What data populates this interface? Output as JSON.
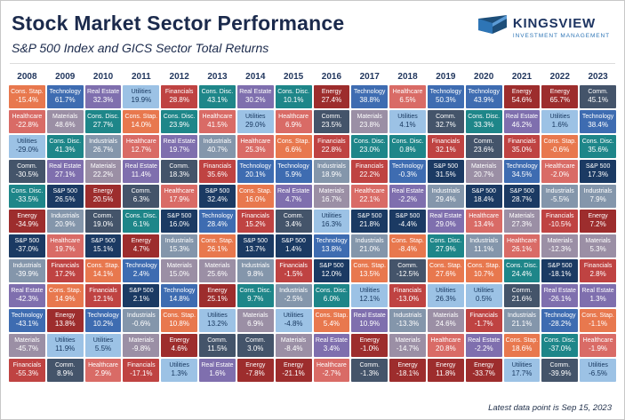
{
  "header": {
    "title": "Stock Market Sector Performance",
    "subtitle": "S&P 500 Index and GICS Sector Total Returns",
    "brand": {
      "name": "KINGSVIEW",
      "tagline": "INVESTMENT MANAGEMENT"
    }
  },
  "footnote": "Latest data point is Sep 15, 2023",
  "colors": {
    "S&P 500": {
      "bg": "#1b3a63",
      "fg": "#ffffff"
    },
    "Technology": {
      "bg": "#3e6cb1",
      "fg": "#ffffff"
    },
    "Comm.": {
      "bg": "#44546a",
      "fg": "#ffffff"
    },
    "Industrials": {
      "bg": "#8496ab",
      "fg": "#ffffff"
    },
    "Utilities": {
      "bg": "#9cc2e5",
      "fg": "#17375e"
    },
    "Cons. Disc.": {
      "bg": "#1e8689",
      "fg": "#ffffff"
    },
    "Cons. Stap.": {
      "bg": "#e8784e",
      "fg": "#ffffff"
    },
    "Healthcare": {
      "bg": "#d96b66",
      "fg": "#ffffff"
    },
    "Financials": {
      "bg": "#bf4342",
      "fg": "#ffffff"
    },
    "Energy": {
      "bg": "#9d2d2d",
      "fg": "#ffffff"
    },
    "Materials": {
      "bg": "#9b8fa5",
      "fg": "#ffffff"
    },
    "Real Estate": {
      "bg": "#7f6fae",
      "fg": "#ffffff"
    }
  },
  "chart_data": {
    "type": "table",
    "subtype": "sector-performance-quilt",
    "title": "Stock Market Sector Performance",
    "subtitle": "S&P 500 Index and GICS Sector Total Returns",
    "note": "Latest data point is Sep 15, 2023",
    "value_unit": "percent annual total return",
    "layout_hint": "16 year columns, each sorted descending; cell color keyed to sector",
    "years": [
      "2008",
      "2009",
      "2010",
      "2011",
      "2012",
      "2013",
      "2014",
      "2015",
      "2016",
      "2017",
      "2018",
      "2019",
      "2020",
      "2021",
      "2022",
      "2023"
    ],
    "columns": {
      "2008": [
        [
          "Cons. Stap.",
          -15.4
        ],
        [
          "Healthcare",
          -22.8
        ],
        [
          "Utilities",
          -29.0
        ],
        [
          "Comm.",
          -30.5
        ],
        [
          "Cons. Disc.",
          -33.5
        ],
        [
          "Energy",
          -34.9
        ],
        [
          "S&P 500",
          -37.0
        ],
        [
          "Industrials",
          -39.9
        ],
        [
          "Real Estate",
          -42.3
        ],
        [
          "Technology",
          -43.1
        ],
        [
          "Materials",
          -45.7
        ],
        [
          "Financials",
          -55.3
        ]
      ],
      "2009": [
        [
          "Technology",
          61.7
        ],
        [
          "Materials",
          48.6
        ],
        [
          "Cons. Disc.",
          41.3
        ],
        [
          "Real Estate",
          27.1
        ],
        [
          "S&P 500",
          26.5
        ],
        [
          "Industrials",
          20.9
        ],
        [
          "Healthcare",
          19.7
        ],
        [
          "Financials",
          17.2
        ],
        [
          "Cons. Stap.",
          14.9
        ],
        [
          "Energy",
          13.8
        ],
        [
          "Utilities",
          11.9
        ],
        [
          "Comm.",
          8.9
        ]
      ],
      "2010": [
        [
          "Real Estate",
          32.3
        ],
        [
          "Cons. Disc.",
          27.7
        ],
        [
          "Industrials",
          26.7
        ],
        [
          "Materials",
          22.2
        ],
        [
          "Energy",
          20.5
        ],
        [
          "Comm.",
          19.0
        ],
        [
          "S&P 500",
          15.1
        ],
        [
          "Cons. Stap.",
          14.1
        ],
        [
          "Financials",
          12.1
        ],
        [
          "Technology",
          10.2
        ],
        [
          "Utilities",
          5.5
        ],
        [
          "Healthcare",
          2.9
        ]
      ],
      "2011": [
        [
          "Utilities",
          19.9
        ],
        [
          "Cons. Stap.",
          14.0
        ],
        [
          "Healthcare",
          12.7
        ],
        [
          "Real Estate",
          11.4
        ],
        [
          "Comm.",
          6.3
        ],
        [
          "Cons. Disc.",
          6.1
        ],
        [
          "Energy",
          4.7
        ],
        [
          "Technology",
          2.4
        ],
        [
          "S&P 500",
          2.1
        ],
        [
          "Industrials",
          -0.6
        ],
        [
          "Materials",
          -9.8
        ],
        [
          "Financials",
          -17.1
        ]
      ],
      "2012": [
        [
          "Financials",
          28.8
        ],
        [
          "Cons. Disc.",
          23.9
        ],
        [
          "Real Estate",
          19.7
        ],
        [
          "Comm.",
          18.3
        ],
        [
          "Healthcare",
          17.9
        ],
        [
          "S&P 500",
          16.0
        ],
        [
          "Industrials",
          15.3
        ],
        [
          "Materials",
          15.0
        ],
        [
          "Technology",
          14.8
        ],
        [
          "Cons. Stap.",
          10.8
        ],
        [
          "Energy",
          4.6
        ],
        [
          "Utilities",
          1.3
        ]
      ],
      "2013": [
        [
          "Cons. Disc.",
          43.1
        ],
        [
          "Healthcare",
          41.5
        ],
        [
          "Industrials",
          40.7
        ],
        [
          "Financials",
          35.6
        ],
        [
          "S&P 500",
          32.4
        ],
        [
          "Technology",
          28.4
        ],
        [
          "Cons. Stap.",
          26.1
        ],
        [
          "Materials",
          25.6
        ],
        [
          "Energy",
          25.1
        ],
        [
          "Utilities",
          13.2
        ],
        [
          "Comm.",
          11.5
        ],
        [
          "Real Estate",
          1.6
        ]
      ],
      "2014": [
        [
          "Real Estate",
          30.2
        ],
        [
          "Utilities",
          29.0
        ],
        [
          "Healthcare",
          25.3
        ],
        [
          "Technology",
          20.1
        ],
        [
          "Cons. Stap.",
          16.0
        ],
        [
          "Financials",
          15.2
        ],
        [
          "S&P 500",
          13.7
        ],
        [
          "Industrials",
          9.8
        ],
        [
          "Cons. Disc.",
          9.7
        ],
        [
          "Materials",
          6.9
        ],
        [
          "Comm.",
          3.0
        ],
        [
          "Energy",
          -7.8
        ]
      ],
      "2015": [
        [
          "Cons. Disc.",
          10.1
        ],
        [
          "Healthcare",
          6.9
        ],
        [
          "Cons. Stap.",
          6.6
        ],
        [
          "Technology",
          5.9
        ],
        [
          "Real Estate",
          4.7
        ],
        [
          "Comm.",
          3.4
        ],
        [
          "S&P 500",
          1.4
        ],
        [
          "Financials",
          -1.5
        ],
        [
          "Industrials",
          -2.5
        ],
        [
          "Utilities",
          -4.8
        ],
        [
          "Materials",
          -8.4
        ],
        [
          "Energy",
          -21.1
        ]
      ],
      "2016": [
        [
          "Energy",
          27.4
        ],
        [
          "Comm.",
          23.5
        ],
        [
          "Financials",
          22.8
        ],
        [
          "Industrials",
          18.9
        ],
        [
          "Materials",
          16.7
        ],
        [
          "Utilities",
          16.3
        ],
        [
          "Technology",
          13.8
        ],
        [
          "S&P 500",
          12.0
        ],
        [
          "Cons. Disc.",
          6.0
        ],
        [
          "Cons. Stap.",
          5.4
        ],
        [
          "Real Estate",
          3.4
        ],
        [
          "Healthcare",
          -2.7
        ]
      ],
      "2017": [
        [
          "Technology",
          38.8
        ],
        [
          "Materials",
          23.8
        ],
        [
          "Cons. Disc.",
          23.0
        ],
        [
          "Financials",
          22.2
        ],
        [
          "Healthcare",
          22.1
        ],
        [
          "S&P 500",
          21.8
        ],
        [
          "Industrials",
          21.0
        ],
        [
          "Cons. Stap.",
          13.5
        ],
        [
          "Utilities",
          12.1
        ],
        [
          "Real Estate",
          10.9
        ],
        [
          "Energy",
          -1.0
        ],
        [
          "Comm.",
          -1.3
        ]
      ],
      "2018": [
        [
          "Healthcare",
          6.5
        ],
        [
          "Utilities",
          4.1
        ],
        [
          "Cons. Disc.",
          0.8
        ],
        [
          "Technology",
          -0.3
        ],
        [
          "Real Estate",
          -2.2
        ],
        [
          "S&P 500",
          -4.4
        ],
        [
          "Cons. Stap.",
          -8.4
        ],
        [
          "Comm.",
          -12.5
        ],
        [
          "Financials",
          -13.0
        ],
        [
          "Industrials",
          -13.3
        ],
        [
          "Materials",
          -14.7
        ],
        [
          "Energy",
          -18.1
        ]
      ],
      "2019": [
        [
          "Technology",
          50.3
        ],
        [
          "Comm.",
          32.7
        ],
        [
          "Financials",
          32.1
        ],
        [
          "S&P 500",
          31.5
        ],
        [
          "Industrials",
          29.4
        ],
        [
          "Real Estate",
          29.0
        ],
        [
          "Cons. Disc.",
          27.9
        ],
        [
          "Cons. Stap.",
          27.6
        ],
        [
          "Utilities",
          26.3
        ],
        [
          "Materials",
          24.6
        ],
        [
          "Healthcare",
          20.8
        ],
        [
          "Energy",
          11.8
        ]
      ],
      "2020": [
        [
          "Technology",
          43.9
        ],
        [
          "Cons. Disc.",
          33.3
        ],
        [
          "Comm.",
          23.6
        ],
        [
          "Materials",
          20.7
        ],
        [
          "S&P 500",
          18.4
        ],
        [
          "Healthcare",
          13.4
        ],
        [
          "Industrials",
          11.1
        ],
        [
          "Cons. Stap.",
          10.7
        ],
        [
          "Utilities",
          0.5
        ],
        [
          "Financials",
          -1.7
        ],
        [
          "Real Estate",
          -2.2
        ],
        [
          "Energy",
          -33.7
        ]
      ],
      "2021": [
        [
          "Energy",
          54.6
        ],
        [
          "Real Estate",
          46.2
        ],
        [
          "Financials",
          35.0
        ],
        [
          "Technology",
          34.5
        ],
        [
          "S&P 500",
          28.7
        ],
        [
          "Materials",
          27.3
        ],
        [
          "Healthcare",
          26.1
        ],
        [
          "Cons. Disc.",
          24.4
        ],
        [
          "Comm.",
          21.6
        ],
        [
          "Industrials",
          21.1
        ],
        [
          "Cons. Stap.",
          18.6
        ],
        [
          "Utilities",
          17.7
        ]
      ],
      "2022": [
        [
          "Energy",
          65.7
        ],
        [
          "Utilities",
          1.6
        ],
        [
          "Cons. Stap.",
          -0.6
        ],
        [
          "Healthcare",
          -2.0
        ],
        [
          "Industrials",
          -5.5
        ],
        [
          "Financials",
          -10.5
        ],
        [
          "Materials",
          -12.3
        ],
        [
          "S&P 500",
          -18.1
        ],
        [
          "Real Estate",
          -26.1
        ],
        [
          "Technology",
          -28.2
        ],
        [
          "Cons. Disc.",
          -37.0
        ],
        [
          "Comm.",
          -39.9
        ]
      ],
      "2023": [
        [
          "Comm.",
          45.1
        ],
        [
          "Technology",
          38.4
        ],
        [
          "Cons. Disc.",
          35.6
        ],
        [
          "S&P 500",
          17.3
        ],
        [
          "Industrials",
          7.9
        ],
        [
          "Energy",
          7.2
        ],
        [
          "Materials",
          5.3
        ],
        [
          "Financials",
          2.8
        ],
        [
          "Real Estate",
          1.3
        ],
        [
          "Cons. Stap.",
          -1.1
        ],
        [
          "Healthcare",
          -1.9
        ],
        [
          "Utilities",
          -6.5
        ]
      ]
    }
  }
}
